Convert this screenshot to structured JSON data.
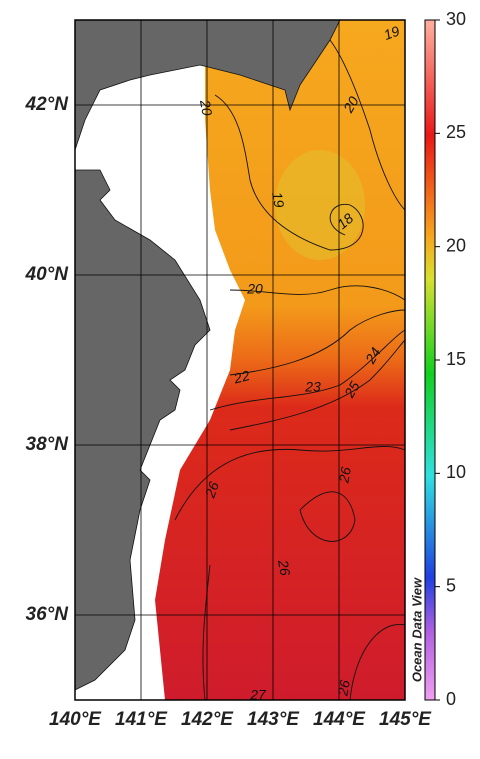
{
  "map": {
    "xlim": [
      140,
      145
    ],
    "ylim": [
      35,
      43
    ],
    "xticks": [
      {
        "value": 140,
        "label": "140°E"
      },
      {
        "value": 141,
        "label": "141°E"
      },
      {
        "value": 142,
        "label": "142°E"
      },
      {
        "value": 143,
        "label": "143°E"
      },
      {
        "value": 144,
        "label": "144°E"
      },
      {
        "value": 145,
        "label": "145°E"
      }
    ],
    "yticks": [
      {
        "value": 36,
        "label": "36°N"
      },
      {
        "value": 38,
        "label": "38°N"
      },
      {
        "value": 40,
        "label": "40°N"
      },
      {
        "value": 42,
        "label": "42°N"
      }
    ],
    "contour_labels": [
      19,
      20,
      20,
      19,
      18,
      20,
      22,
      23,
      24,
      25,
      26,
      26,
      26,
      26,
      27
    ]
  },
  "colorbar": {
    "lim": [
      0,
      30
    ],
    "ticks": [
      0,
      5,
      10,
      15,
      20,
      25,
      30
    ]
  },
  "watermark": "Ocean Data View"
}
